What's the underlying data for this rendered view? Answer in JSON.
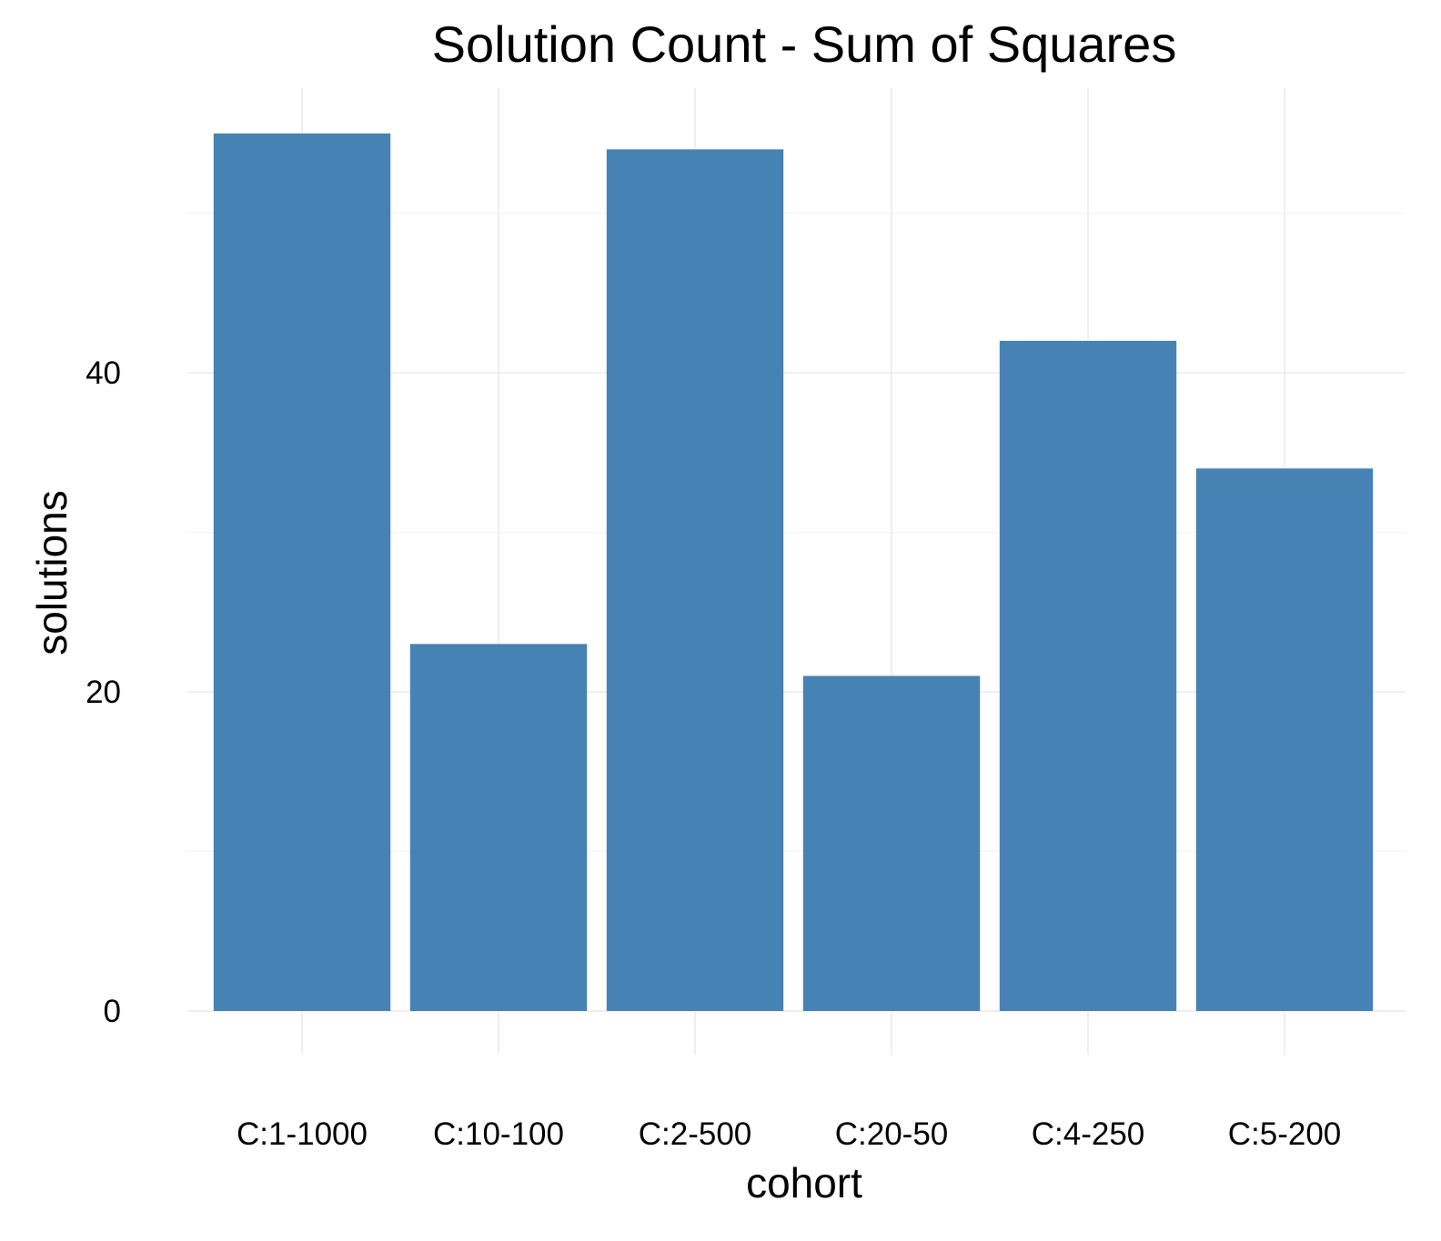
{
  "chart_data": {
    "type": "bar",
    "title": "Solution Count - Sum of Squares",
    "xlabel": "cohort",
    "ylabel": "solutions",
    "categories": [
      "C:1-1000",
      "C:10-100",
      "C:2-500",
      "C:20-50",
      "C:4-250",
      "C:5-200"
    ],
    "values": [
      55,
      23,
      54,
      21,
      42,
      34
    ],
    "ylim": [
      0,
      55
    ],
    "yticks": [
      0,
      20,
      40
    ],
    "ytick_labels": [
      "0",
      "20",
      "40"
    ],
    "y_minor_ticks": [
      10,
      30,
      50
    ],
    "bar_color": "#4682b4",
    "grid": true,
    "legend": "none"
  }
}
